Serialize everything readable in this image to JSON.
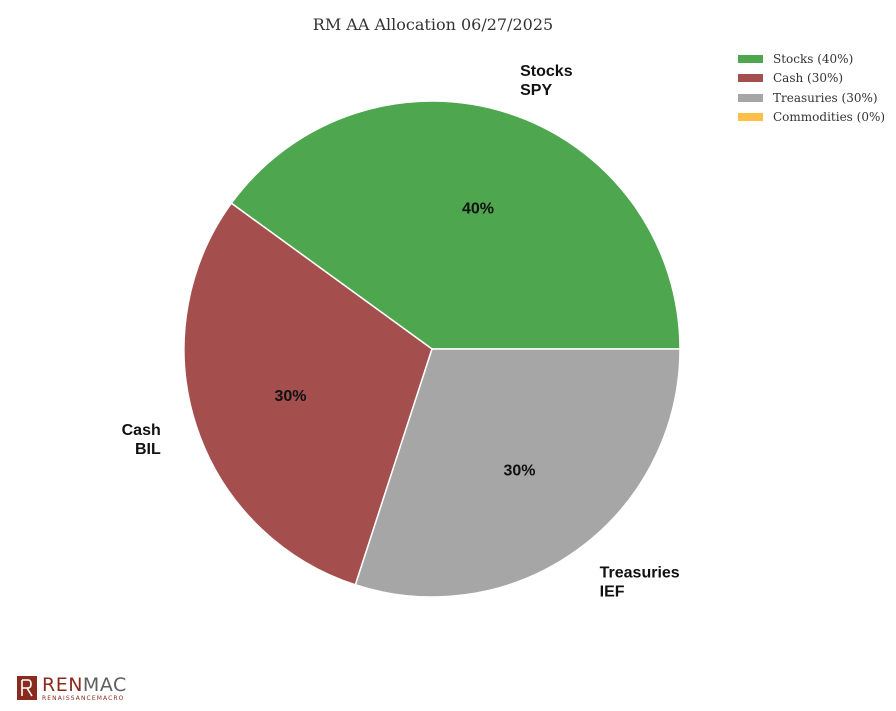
{
  "chart_data": {
    "type": "pie",
    "title": "RM AA Allocation 06/27/2025",
    "categories": [
      "Stocks",
      "Cash",
      "Treasuries",
      "Commodities"
    ],
    "tickers": [
      "SPY",
      "BIL",
      "IEF",
      ""
    ],
    "values": [
      40,
      30,
      30,
      0
    ],
    "slice_labels": [
      "40%",
      "30%",
      "30%",
      ""
    ],
    "colors": [
      "#4ea64e",
      "#a44e4e",
      "#a6a6a6",
      "#ffbf47"
    ],
    "legend": {
      "placement": "top-right",
      "entries": [
        "Stocks (40%)",
        "Cash (30%)",
        "Treasuries (30%)",
        "Commodities (0%)"
      ]
    }
  },
  "branding": {
    "logo_ren": "REN",
    "logo_mac": "MAC",
    "logo_sub": "RENAISSANCEMACRO"
  }
}
